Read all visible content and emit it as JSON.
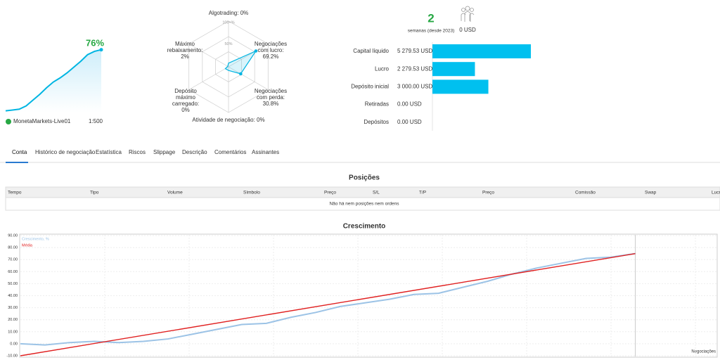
{
  "account": {
    "sparkline": [
      2,
      3,
      4,
      8,
      15,
      22,
      30,
      37,
      42,
      48,
      55,
      62,
      70,
      74,
      76
    ],
    "sparkline_ylim": [
      0,
      80
    ],
    "growth": 76,
    "growth_label": "76%",
    "server": "MonetaMarkets-Live01",
    "leverage": "1:500"
  },
  "radar": {
    "scale_labels": [
      "100+%",
      "50%"
    ],
    "axes": [
      {
        "label": [
          "Algotrading:"
        ],
        "value": 0,
        "value_label": "0%"
      },
      {
        "label": [
          "Negociações",
          "com lucro:"
        ],
        "value": 69.2,
        "value_label": "69.2%"
      },
      {
        "label": [
          "Negociações",
          "com perda:"
        ],
        "value": 30.8,
        "value_label": "30.8%"
      },
      {
        "label": [
          "Atividade de negociação:"
        ],
        "value": 0,
        "value_label": "0%"
      },
      {
        "label": [
          "Depósito",
          "máximo",
          "carregado:"
        ],
        "value": 0,
        "value_label": "0%"
      },
      {
        "label": [
          "Máximo",
          "rebaixamento:"
        ],
        "value": 2,
        "value_label": "2%"
      }
    ]
  },
  "summary": {
    "weeks": 2,
    "weeks_note": "semanas (desde 2023)",
    "subscribers_value": "0 USD"
  },
  "balance": {
    "color": "#00c0ef",
    "rows": [
      {
        "name": "Capital líquido",
        "value": 5279.53,
        "value_label": "5 279.53 USD"
      },
      {
        "name": "Lucro",
        "value": 2279.53,
        "value_label": "2 279.53 USD"
      },
      {
        "name": "Depósito inicial",
        "value": 3000,
        "value_label": "3 000.00 USD"
      },
      {
        "name": "Retiradas",
        "value": 0,
        "value_label": "0.00 USD"
      },
      {
        "name": "Depósitos",
        "value": 0,
        "value_label": "0.00 USD"
      }
    ]
  },
  "tabs": [
    "Conta",
    "Histórico de negociação",
    "Estatística",
    "Riscos",
    "Slippage",
    "Descrição",
    "Comentários",
    "Assinantes"
  ],
  "positions": {
    "title": "Posições",
    "columns": [
      "Tempo",
      "Tipo",
      "Volume",
      "Símbolo",
      "Preço",
      "S/L",
      "T/P",
      "Preço",
      "Comissão",
      "Swap",
      "Lucro"
    ],
    "empty": "Não há nem posições nem ordens"
  },
  "chart_data": {
    "type": "line",
    "title": "Crescimento",
    "xlabel": "Negociações",
    "xlim": [
      0,
      28.3
    ],
    "ylim": [
      -10,
      90
    ],
    "yticks": [
      {
        "value": 90,
        "label": "90.00"
      },
      {
        "value": 80,
        "label": "80.00"
      },
      {
        "value": 70,
        "label": "70.00"
      },
      {
        "value": 60,
        "label": "60.00"
      },
      {
        "value": 50,
        "label": "50.00"
      },
      {
        "value": 40,
        "label": "40.00"
      },
      {
        "value": 30,
        "label": "30.00"
      },
      {
        "value": 20,
        "label": "20.00"
      },
      {
        "value": 10,
        "label": "10.00"
      },
      {
        "value": 0,
        "label": "0.00"
      },
      {
        "value": -10,
        "label": "-10.00"
      }
    ],
    "series": [
      {
        "name": "Crescimento, %",
        "color": "#9cc3e6",
        "x": [
          0,
          1,
          2,
          3,
          4,
          5,
          6,
          7,
          8,
          9,
          10,
          11,
          12,
          13,
          14,
          15,
          16,
          17,
          18,
          19,
          20,
          21,
          22,
          23,
          24,
          25
        ],
        "values": [
          0,
          -1,
          1,
          2,
          1,
          2,
          4,
          8,
          12,
          16,
          17,
          22,
          26,
          31,
          34,
          37,
          41,
          42,
          47,
          52,
          58,
          63,
          67,
          71,
          72,
          75
        ]
      },
      {
        "name": "Média",
        "color": "#e02020",
        "x": [
          0,
          25
        ],
        "values": [
          -10,
          75
        ]
      }
    ]
  }
}
